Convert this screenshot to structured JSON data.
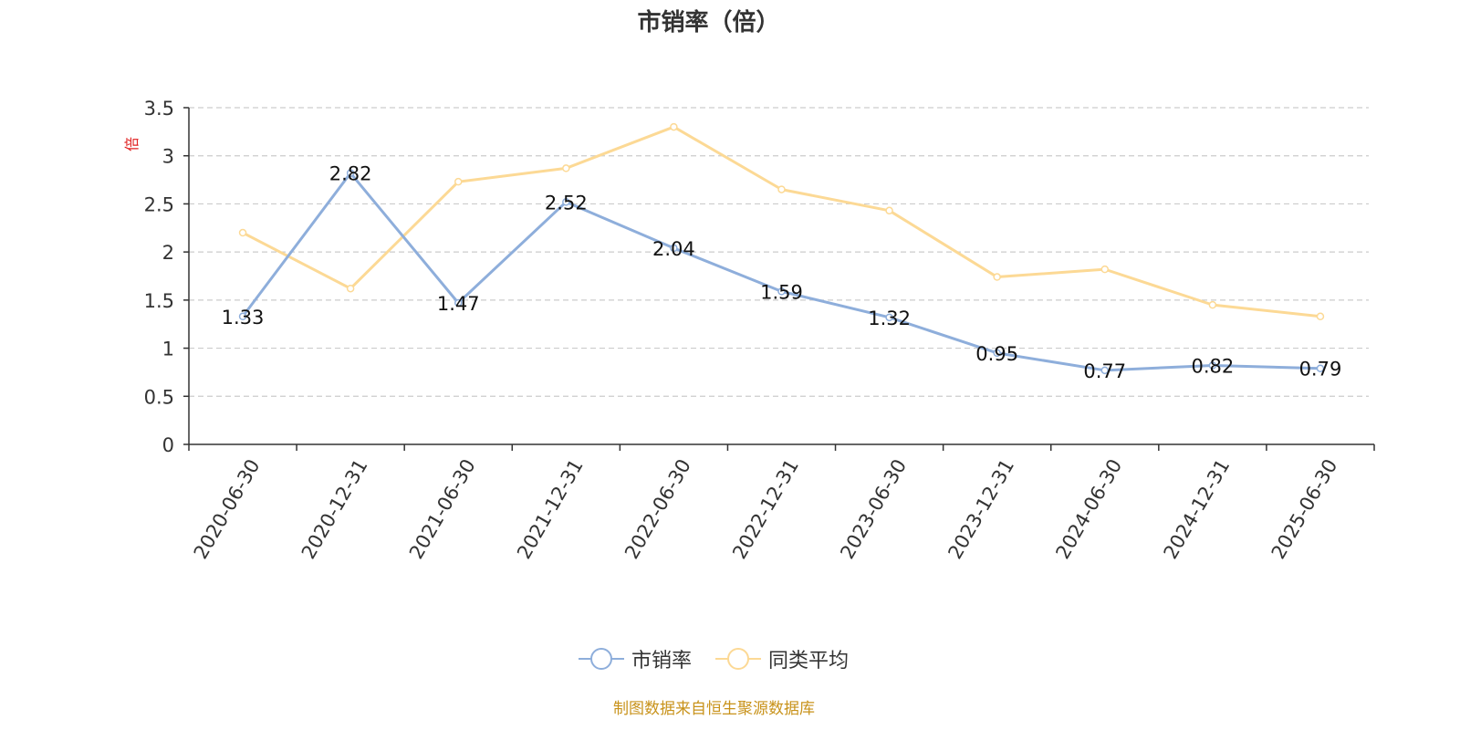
{
  "chart_data": {
    "type": "line",
    "title": "市销率（倍）",
    "ylabel": "倍",
    "xlabel": "",
    "categories": [
      "2020-06-30",
      "2020-12-31",
      "2021-06-30",
      "2021-12-31",
      "2022-06-30",
      "2022-12-31",
      "2023-06-30",
      "2023-12-31",
      "2024-06-30",
      "2024-12-31",
      "2025-06-30"
    ],
    "ylim": [
      0,
      3.5
    ],
    "yticks": [
      "0",
      "0.5",
      "1",
      "1.5",
      "2",
      "2.5",
      "3",
      "3.5"
    ],
    "grid": true,
    "legend_position": "bottom",
    "series": [
      {
        "name": "市销率",
        "color": "#8eaedb",
        "values": [
          1.33,
          2.82,
          1.47,
          2.52,
          2.04,
          1.59,
          1.32,
          0.95,
          0.77,
          0.82,
          0.79
        ],
        "labels": [
          "1.33",
          "2.82",
          "1.47",
          "2.52",
          "2.04",
          "1.59",
          "1.32",
          "0.95",
          "0.77",
          "0.82",
          "0.79"
        ]
      },
      {
        "name": "同类平均",
        "color": "#fcd995",
        "values": [
          2.2,
          1.62,
          2.73,
          2.87,
          3.3,
          2.65,
          2.43,
          1.74,
          1.82,
          1.45,
          1.33
        ]
      }
    ]
  },
  "source_note": "制图数据来自恒生聚源数据库"
}
